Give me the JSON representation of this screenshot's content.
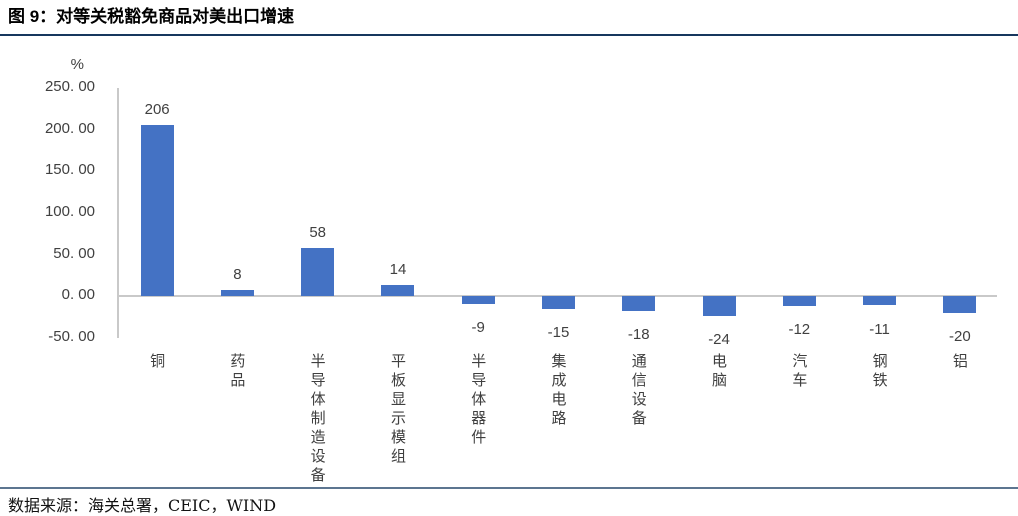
{
  "header": {
    "title": "图 9：对等关税豁免商品对美出口增速"
  },
  "footer": {
    "source": "数据来源：海关总署，CEIC，WIND"
  },
  "chart_data": {
    "type": "bar",
    "title": "图 9：对等关税豁免商品对美出口增速",
    "unit_label": "%",
    "categories": [
      "铜",
      "药品",
      "半导体制造设备",
      "平板显示模组",
      "半导体器件",
      "集成电路",
      "通信设备",
      "电脑",
      "汽车",
      "钢铁",
      "铝"
    ],
    "values": [
      206,
      8,
      58,
      14,
      -9,
      -15,
      -18,
      -24,
      -12,
      -11,
      -20
    ],
    "y_ticks": [
      250,
      200,
      150,
      100,
      50,
      0,
      -50
    ],
    "y_tick_labels": [
      "250. 00",
      "200. 00",
      "150. 00",
      "100. 00",
      "50. 00",
      "0. 00",
      "-50. 00"
    ],
    "ylim": [
      -50,
      250
    ],
    "xlabel": "",
    "ylabel": "%",
    "grid": false,
    "legend": "none",
    "value_labels_visible": true,
    "bar_color": "#4472C4",
    "axis_color": "#C9C9C9",
    "label_color": "#404040",
    "title_rule_color": "#17375E",
    "footer_rule_color": "#5C7590"
  }
}
